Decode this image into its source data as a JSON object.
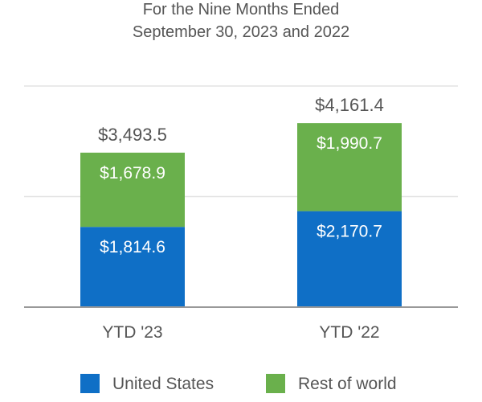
{
  "chart_data": {
    "type": "bar",
    "stacked": true,
    "title_lines": [
      "For the Nine Months Ended",
      "September 30, 2023 and 2022"
    ],
    "categories": [
      "YTD '23",
      "YTD '22"
    ],
    "series": [
      {
        "name": "United States",
        "color": "#0f6fc6",
        "values": [
          1814.6,
          2170.7
        ],
        "labels": [
          "$1,814.6",
          "$2,170.7"
        ]
      },
      {
        "name": "Rest of world",
        "color": "#6ab04c",
        "values": [
          1678.9,
          1990.7
        ],
        "labels": [
          "$1,678.9",
          "$1,990.7"
        ]
      }
    ],
    "totals": [
      3493.5,
      4161.4
    ],
    "total_labels": [
      "$3,493.5",
      "$4,161.4"
    ],
    "ylim": [
      0,
      5000
    ],
    "y_gridlines": [
      2500,
      5000
    ],
    "grid": true,
    "legend_position": "bottom"
  }
}
